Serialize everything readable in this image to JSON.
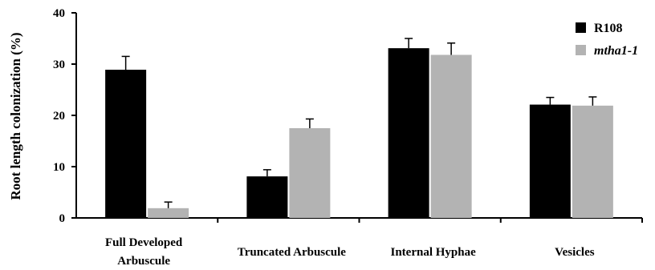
{
  "chart_data": {
    "type": "bar",
    "categories": [
      [
        "Full Developed",
        "Arbuscule"
      ],
      [
        "Truncated Arbuscule"
      ],
      [
        "Internal  Hyphae"
      ],
      [
        "Vesicles"
      ]
    ],
    "series": [
      {
        "name": "R108",
        "color": "#000000",
        "values": [
          28.9,
          8.1,
          33.1,
          22.1
        ],
        "errors": [
          2.6,
          1.3,
          1.9,
          1.4
        ]
      },
      {
        "name": "mtha1-1",
        "color": "#b3b3b3",
        "values": [
          1.9,
          17.5,
          31.8,
          21.9
        ],
        "errors": [
          1.2,
          1.8,
          2.3,
          1.7
        ]
      }
    ],
    "ylabel": "Root length colonization (%)",
    "xlabel": "",
    "ylim": [
      0,
      40
    ],
    "yticks": [
      0,
      10,
      20,
      30,
      40
    ],
    "grid": false,
    "legend_position": "top-right"
  }
}
